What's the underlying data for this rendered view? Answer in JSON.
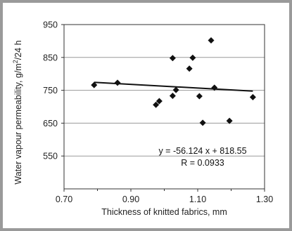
{
  "chart_data": {
    "type": "scatter",
    "title": "",
    "xlabel": "Thickness of knitted fabrics, mm",
    "ylabel": "Water vapour permeability, g/m²/24 h",
    "ylabel_parts": {
      "before": "Water vapour permeability, g/m",
      "sup": "2",
      "after": "/24 h"
    },
    "xlim": [
      0.7,
      1.3
    ],
    "ylim": [
      450,
      950
    ],
    "x_ticks": [
      0.7,
      0.9,
      1.1,
      1.3
    ],
    "x_tick_labels": [
      "0.70",
      "0.90",
      "1.10",
      "1.30"
    ],
    "y_ticks": [
      550,
      650,
      750,
      850,
      950
    ],
    "y_tick_labels": [
      "550",
      "650",
      "750",
      "850",
      "950"
    ],
    "grid": "horizontal",
    "marker": "diamond",
    "marker_color": "#111111",
    "points": [
      {
        "x": 0.79,
        "y": 766
      },
      {
        "x": 0.86,
        "y": 773
      },
      {
        "x": 0.975,
        "y": 706
      },
      {
        "x": 0.985,
        "y": 717
      },
      {
        "x": 1.025,
        "y": 848
      },
      {
        "x": 1.025,
        "y": 733
      },
      {
        "x": 1.035,
        "y": 751
      },
      {
        "x": 1.075,
        "y": 816
      },
      {
        "x": 1.085,
        "y": 849
      },
      {
        "x": 1.105,
        "y": 732
      },
      {
        "x": 1.115,
        "y": 651
      },
      {
        "x": 1.14,
        "y": 902
      },
      {
        "x": 1.15,
        "y": 758
      },
      {
        "x": 1.195,
        "y": 657
      },
      {
        "x": 1.265,
        "y": 729
      }
    ],
    "trendline": {
      "slope": -56.124,
      "intercept": 818.55,
      "x_range": [
        0.79,
        1.265
      ]
    },
    "annotations": [
      "y = -56.124 x + 818.55",
      "R = 0.0933"
    ]
  }
}
